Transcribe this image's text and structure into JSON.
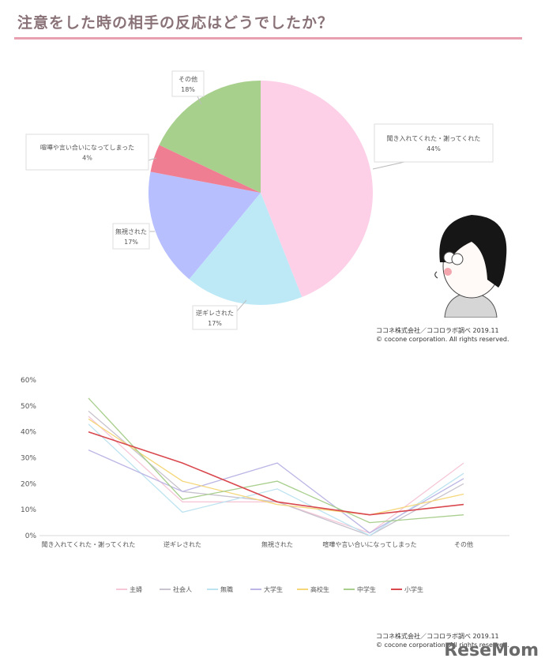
{
  "page": {
    "title": "注意をした時の相手の反応はどうでしたか？",
    "credit1_line1": "ココネ株式会社／ココロラボ調べ 2019.11",
    "credit1_line2": "© cocone corporation. All rights reserved.",
    "credit2_line1": "ココネ株式会社／ココロラボ調べ 2019.11",
    "credit2_line2": "© cocone corporation. All rights reserved.",
    "watermark": "ReseMom"
  },
  "colors": {
    "title_rule": "#e8a0b0",
    "pie": [
      "#fdd0e8",
      "#bde9f7",
      "#b8bfff",
      "#f07e92",
      "#a8d08d"
    ],
    "lines": [
      "#f6c7d7",
      "#c9c3cf",
      "#bde3f0",
      "#bbb6e5",
      "#f5d77a",
      "#a9cf8e",
      "#d9484e"
    ]
  },
  "chart_data": [
    {
      "type": "pie",
      "title": "",
      "slices": [
        {
          "label": "聞き入れてくれた・謝ってくれた",
          "value": 44,
          "value_label": "44%"
        },
        {
          "label": "逆ギレされた",
          "value": 17,
          "value_label": "17%"
        },
        {
          "label": "無視された",
          "value": 17,
          "value_label": "17%"
        },
        {
          "label": "喧嘩や言い合いになってしまった",
          "value": 4,
          "value_label": "4%"
        },
        {
          "label": "その他",
          "value": 18,
          "value_label": "18%"
        }
      ]
    },
    {
      "type": "line",
      "title": "",
      "categories": [
        "聞き入れてくれた・謝ってくれた",
        "逆ギレされた",
        "無視された",
        "喧嘩や言い合いになってしまった",
        "その他"
      ],
      "ylim": [
        0,
        60
      ],
      "yticks": [
        "0%",
        "10%",
        "20%",
        "30%",
        "40%",
        "50%",
        "60%"
      ],
      "grid": false,
      "legend_position": "bottom",
      "series": [
        {
          "name": "主婦",
          "values": [
            46,
            13,
            13,
            1,
            28
          ]
        },
        {
          "name": "社会人",
          "values": [
            48,
            17,
            13,
            0,
            20
          ]
        },
        {
          "name": "無職",
          "values": [
            43,
            9,
            18,
            0,
            24
          ]
        },
        {
          "name": "大学生",
          "values": [
            33,
            17,
            28,
            1,
            22
          ]
        },
        {
          "name": "高校生",
          "values": [
            45,
            21,
            12,
            8,
            16
          ]
        },
        {
          "name": "中学生",
          "values": [
            53,
            14,
            21,
            5,
            8
          ]
        },
        {
          "name": "小学生",
          "values": [
            40,
            28,
            13,
            8,
            12
          ]
        }
      ]
    }
  ]
}
